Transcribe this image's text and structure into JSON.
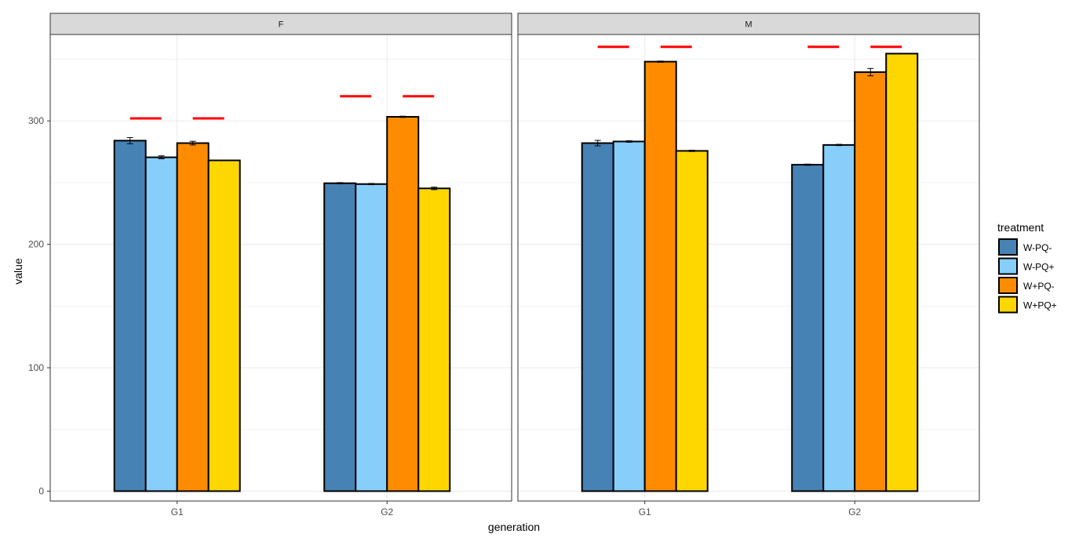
{
  "chart_data": {
    "type": "bar",
    "xlabel": "generation",
    "ylabel": "value",
    "ylim": [
      -8,
      370
    ],
    "yticks": [
      0,
      100,
      200,
      300
    ],
    "categories": [
      "G1",
      "G2"
    ],
    "legend": {
      "title": "treatment",
      "position": "right",
      "entries": [
        "W-PQ-",
        "W-PQ+",
        "W+PQ-",
        "W+PQ+"
      ]
    },
    "colors": {
      "W-PQ-": "#4682B4",
      "W-PQ+": "#87CEFA",
      "W+PQ-": "#FF8C00",
      "W+PQ+": "#FFD700",
      "reference_line": "#FF0000",
      "strip": "#D9D9D9",
      "grid": "#EBEBEB"
    },
    "grid": true,
    "panels": [
      {
        "strip": "F",
        "groups": [
          {
            "category": "G1",
            "bars": [
              {
                "treatment": "W-PQ-",
                "value": 284,
                "error": 2.5
              },
              {
                "treatment": "W-PQ+",
                "value": 270.5,
                "error": 1.2
              },
              {
                "treatment": "W+PQ-",
                "value": 282,
                "error": 1.5
              },
              {
                "treatment": "W+PQ+",
                "value": 268,
                "error": 0
              }
            ],
            "reference_lines": [
              {
                "between": [
                  "W-PQ-",
                  "W-PQ+"
                ],
                "value": 302
              },
              {
                "between": [
                  "W+PQ-",
                  "W+PQ+"
                ],
                "value": 302
              }
            ]
          },
          {
            "category": "G2",
            "bars": [
              {
                "treatment": "W-PQ-",
                "value": 249.5,
                "error": 0.5
              },
              {
                "treatment": "W-PQ+",
                "value": 248.8,
                "error": 0.5
              },
              {
                "treatment": "W+PQ-",
                "value": 303.3,
                "error": 0.5
              },
              {
                "treatment": "W+PQ+",
                "value": 245.3,
                "error": 1
              }
            ],
            "reference_lines": [
              {
                "between": [
                  "W-PQ-",
                  "W-PQ+"
                ],
                "value": 320
              },
              {
                "between": [
                  "W+PQ-",
                  "W+PQ+"
                ],
                "value": 320
              }
            ]
          }
        ]
      },
      {
        "strip": "M",
        "groups": [
          {
            "category": "G1",
            "bars": [
              {
                "treatment": "W-PQ-",
                "value": 282,
                "error": 2.2
              },
              {
                "treatment": "W-PQ+",
                "value": 283.3,
                "error": 0.6
              },
              {
                "treatment": "W+PQ-",
                "value": 348,
                "error": 0.5
              },
              {
                "treatment": "W+PQ+",
                "value": 275.7,
                "error": 0.5
              }
            ],
            "reference_lines": [
              {
                "between": [
                  "W-PQ-",
                  "W-PQ+"
                ],
                "value": 360
              },
              {
                "between": [
                  "W+PQ-",
                  "W+PQ+"
                ],
                "value": 360
              }
            ]
          },
          {
            "category": "G2",
            "bars": [
              {
                "treatment": "W-PQ-",
                "value": 264.5,
                "error": 0.5
              },
              {
                "treatment": "W-PQ+",
                "value": 280.5,
                "error": 0.5
              },
              {
                "treatment": "W+PQ-",
                "value": 339.5,
                "error": 3
              },
              {
                "treatment": "W+PQ+",
                "value": 354.5,
                "error": 0
              }
            ],
            "reference_lines": [
              {
                "between": [
                  "W-PQ-",
                  "W-PQ+"
                ],
                "value": 360
              },
              {
                "between": [
                  "W+PQ-",
                  "W+PQ+"
                ],
                "value": 360
              }
            ]
          }
        ]
      }
    ]
  }
}
